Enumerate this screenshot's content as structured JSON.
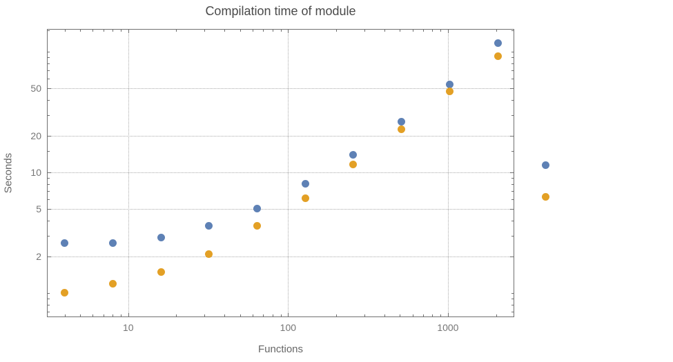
{
  "chart": {
    "title": "Compilation time of module",
    "xlabel": "Functions",
    "ylabel": "Seconds"
  },
  "chart_data": {
    "type": "scatter",
    "title": "Compilation time of module",
    "xlabel": "Functions",
    "ylabel": "Seconds",
    "x_scale": "log",
    "y_scale": "log",
    "grid": true,
    "x_range": [
      3.1,
      2600
    ],
    "y_range": [
      0.63,
      155
    ],
    "x_ticks": [
      10,
      100,
      1000
    ],
    "y_ticks": [
      2,
      5,
      10,
      20,
      50
    ],
    "x_minor_ticks": [
      4,
      5,
      6,
      7,
      8,
      9,
      20,
      30,
      40,
      50,
      60,
      70,
      80,
      90,
      200,
      300,
      400,
      500,
      600,
      700,
      800,
      900,
      2000
    ],
    "y_minor_ticks": [
      0.7,
      0.8,
      0.9,
      1,
      3,
      4,
      6,
      7,
      8,
      9,
      15,
      30,
      40,
      60,
      70,
      80,
      90,
      100,
      150
    ],
    "x": [
      4,
      8,
      16,
      32,
      64,
      128,
      256,
      512,
      1024,
      2048,
      4096
    ],
    "series": [
      {
        "name": "series-blue",
        "color": "#5e81b5",
        "values": [
          2.6,
          2.6,
          2.9,
          3.6,
          5.0,
          8.1,
          14,
          26.5,
          54,
          118,
          11.5
        ]
      },
      {
        "name": "series-orange",
        "color": "#e3a025",
        "values": [
          1.0,
          1.2,
          1.5,
          2.1,
          3.6,
          6.1,
          11.6,
          22.7,
          47,
          92,
          6.3
        ]
      }
    ]
  }
}
